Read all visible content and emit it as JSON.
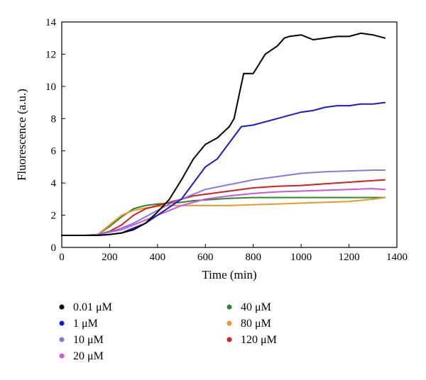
{
  "chart_data": {
    "type": "line",
    "xlabel": "Time (min)",
    "ylabel": "Fluorescence (a.u.)",
    "xlim": [
      0,
      1400
    ],
    "ylim": [
      0,
      14
    ],
    "xticks": [
      0,
      200,
      400,
      600,
      800,
      1000,
      1200,
      1400
    ],
    "yticks": [
      0,
      2,
      4,
      6,
      8,
      10,
      12,
      14
    ],
    "grid": false,
    "legend_position": "bottom",
    "series": [
      {
        "name": "0.01 μM",
        "color": "#000000",
        "x": [
          0,
          100,
          150,
          200,
          250,
          300,
          350,
          400,
          450,
          500,
          550,
          600,
          650,
          700,
          720,
          760,
          800,
          850,
          900,
          930,
          950,
          1000,
          1050,
          1100,
          1150,
          1200,
          1250,
          1300,
          1350
        ],
        "y": [
          0.75,
          0.75,
          0.75,
          0.8,
          0.9,
          1.1,
          1.5,
          2.2,
          3.0,
          4.2,
          5.5,
          6.4,
          6.8,
          7.5,
          8.0,
          10.8,
          10.8,
          12.0,
          12.5,
          13.0,
          13.1,
          13.2,
          12.9,
          13.0,
          13.1,
          13.1,
          13.3,
          13.2,
          13.0
        ]
      },
      {
        "name": "1 μM",
        "color": "#1a1ad0",
        "x": [
          0,
          100,
          150,
          200,
          250,
          300,
          350,
          400,
          450,
          500,
          550,
          600,
          650,
          700,
          750,
          800,
          850,
          900,
          950,
          1000,
          1050,
          1100,
          1150,
          1200,
          1250,
          1300,
          1350
        ],
        "y": [
          0.75,
          0.75,
          0.75,
          0.8,
          0.9,
          1.2,
          1.5,
          2.0,
          2.5,
          3.0,
          4.0,
          5.0,
          5.5,
          6.5,
          7.5,
          7.6,
          7.8,
          8.0,
          8.2,
          8.4,
          8.5,
          8.7,
          8.8,
          8.8,
          8.9,
          8.9,
          9.0
        ]
      },
      {
        "name": "10 μM",
        "color": "#8877dd",
        "x": [
          0,
          100,
          150,
          200,
          250,
          300,
          350,
          400,
          450,
          500,
          550,
          600,
          700,
          800,
          900,
          1000,
          1100,
          1200,
          1300,
          1350
        ],
        "y": [
          0.75,
          0.75,
          0.8,
          0.95,
          1.2,
          1.5,
          1.9,
          2.3,
          2.7,
          3.0,
          3.3,
          3.6,
          3.9,
          4.2,
          4.4,
          4.6,
          4.7,
          4.75,
          4.8,
          4.8
        ]
      },
      {
        "name": "20 μM",
        "color": "#cc55dd",
        "x": [
          0,
          100,
          150,
          200,
          250,
          300,
          350,
          400,
          450,
          500,
          550,
          600,
          700,
          800,
          900,
          1000,
          1100,
          1200,
          1300,
          1350
        ],
        "y": [
          0.75,
          0.75,
          0.8,
          0.95,
          1.1,
          1.4,
          1.7,
          2.0,
          2.3,
          2.6,
          2.8,
          3.0,
          3.2,
          3.35,
          3.45,
          3.5,
          3.55,
          3.6,
          3.65,
          3.6
        ]
      },
      {
        "name": "40 μM",
        "color": "#2a8a2a",
        "x": [
          0,
          100,
          150,
          200,
          250,
          300,
          350,
          400,
          450,
          500,
          550,
          600,
          700,
          800,
          900,
          1000,
          1100,
          1200,
          1300,
          1350
        ],
        "y": [
          0.75,
          0.75,
          0.8,
          1.3,
          1.9,
          2.4,
          2.6,
          2.7,
          2.75,
          2.8,
          2.9,
          2.95,
          3.05,
          3.1,
          3.1,
          3.1,
          3.1,
          3.1,
          3.1,
          3.1
        ]
      },
      {
        "name": "80 μM",
        "color": "#f0962a",
        "x": [
          0,
          100,
          150,
          200,
          250,
          300,
          350,
          400,
          450,
          500,
          550,
          600,
          700,
          800,
          900,
          1000,
          1100,
          1200,
          1300,
          1350
        ],
        "y": [
          0.75,
          0.75,
          0.8,
          1.4,
          2.0,
          2.3,
          2.45,
          2.55,
          2.6,
          2.6,
          2.6,
          2.6,
          2.6,
          2.65,
          2.7,
          2.75,
          2.8,
          2.85,
          3.0,
          3.1
        ]
      },
      {
        "name": "120 μM",
        "color": "#d42020",
        "x": [
          0,
          100,
          150,
          200,
          250,
          300,
          350,
          400,
          450,
          500,
          550,
          600,
          700,
          800,
          900,
          1000,
          1100,
          1200,
          1300,
          1350
        ],
        "y": [
          0.75,
          0.75,
          0.8,
          1.0,
          1.4,
          2.0,
          2.4,
          2.6,
          2.8,
          3.0,
          3.2,
          3.3,
          3.5,
          3.7,
          3.8,
          3.85,
          3.95,
          4.05,
          4.15,
          4.2
        ]
      }
    ]
  }
}
